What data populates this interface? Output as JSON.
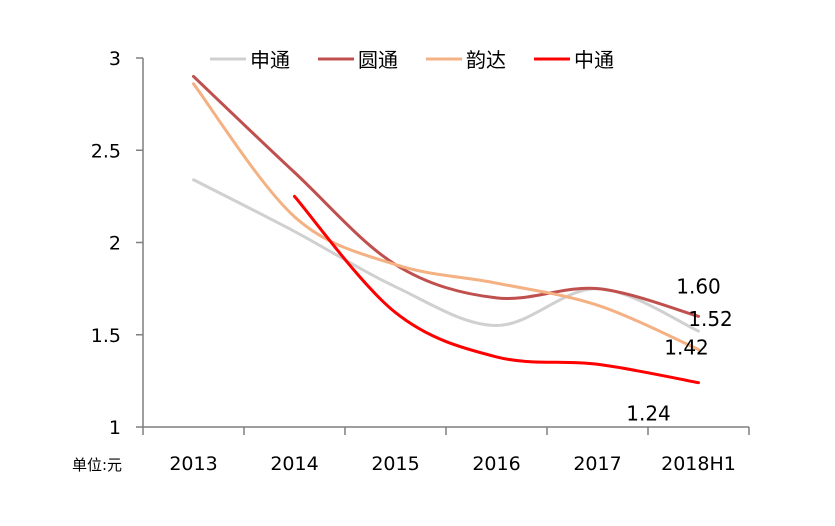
{
  "chart_data": {
    "type": "line",
    "unit_label": "单位:元",
    "categories": [
      "2013",
      "2014",
      "2015",
      "2016",
      "2017",
      "2018H1"
    ],
    "ylim": [
      1,
      3
    ],
    "yticks": [
      1,
      1.5,
      2,
      2.5,
      3
    ],
    "ytick_labels": [
      "1",
      "1.5",
      "2",
      "2.5",
      "3"
    ],
    "grid": false,
    "legend_position": "top",
    "series": [
      {
        "name": "申通",
        "color": "#d0d0d0",
        "values": [
          2.34,
          2.06,
          1.76,
          1.55,
          1.75,
          1.52
        ]
      },
      {
        "name": "圆通",
        "color": "#c0504d",
        "values": [
          2.9,
          2.38,
          1.88,
          1.7,
          1.75,
          1.6
        ]
      },
      {
        "name": "韵达",
        "color": "#f4b183",
        "values": [
          2.86,
          2.14,
          1.88,
          1.78,
          1.66,
          1.42
        ]
      },
      {
        "name": "中通",
        "color": "#ff0000",
        "values": [
          null,
          2.25,
          1.62,
          1.38,
          1.34,
          1.24
        ]
      }
    ],
    "data_labels": [
      {
        "series": "圆通",
        "text": "1.60"
      },
      {
        "series": "申通",
        "text": "1.52"
      },
      {
        "series": "韵达",
        "text": "1.42"
      },
      {
        "series": "中通",
        "text": "1.24"
      }
    ]
  }
}
